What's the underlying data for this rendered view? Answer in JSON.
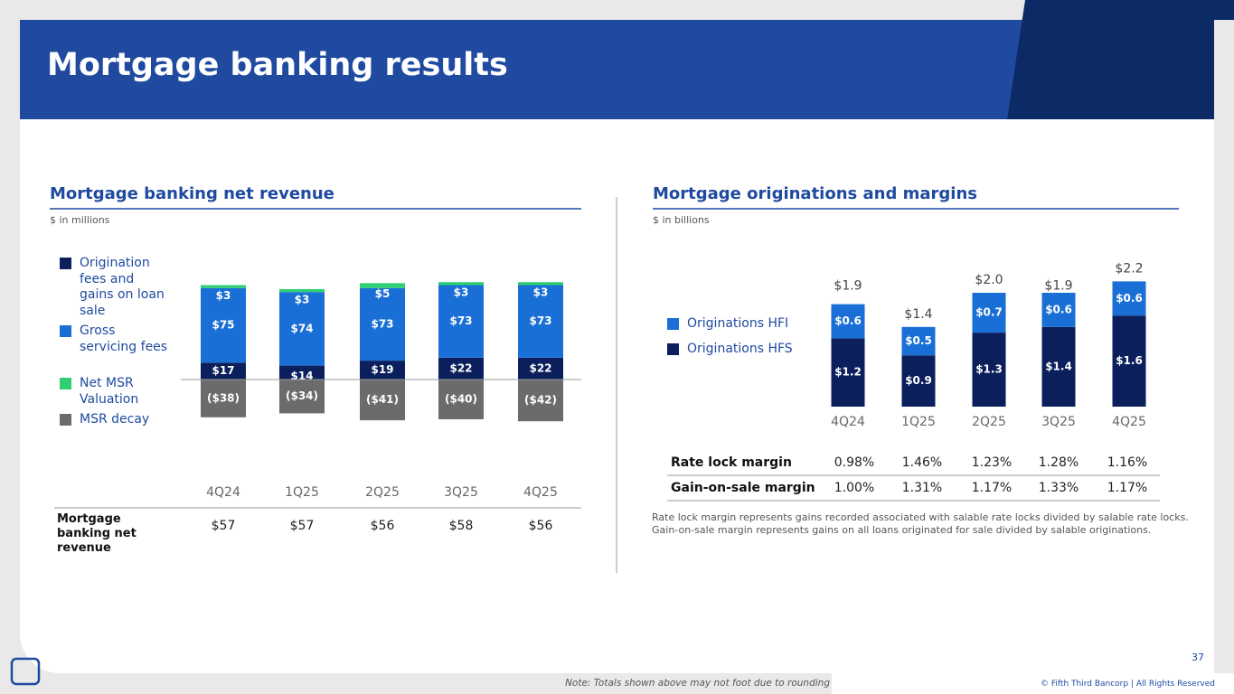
{
  "page": {
    "title": "Mortgage banking results",
    "page_number": "37",
    "note": "Note: Totals shown above may not foot due to rounding",
    "copyright": "© Fifth Third Bancorp | All Rights Reserved"
  },
  "chart_data": [
    {
      "type": "stacked-bar",
      "title": "Mortgage banking net revenue",
      "subtitle": "$ in millions",
      "categories": [
        "4Q24",
        "1Q25",
        "2Q25",
        "3Q25",
        "4Q25"
      ],
      "series": [
        {
          "name": "Origination fees and gains on loan sale",
          "color": "#0b1f5c",
          "values": [
            17,
            14,
            19,
            22,
            22
          ],
          "value_labels": [
            "$17",
            "$14",
            "$19",
            "$22",
            "$22"
          ]
        },
        {
          "name": "Gross servicing fees",
          "color": "#1a6fd6",
          "values": [
            75,
            74,
            73,
            73,
            73
          ],
          "value_labels": [
            "$75",
            "$74",
            "$73",
            "$73",
            "$73"
          ]
        },
        {
          "name": "Net MSR Valuation",
          "color": "#2fcf72",
          "values": [
            3,
            3,
            5,
            3,
            3
          ],
          "value_labels": [
            "$3",
            "$3",
            "$5",
            "$3",
            "$3"
          ]
        },
        {
          "name": "MSR decay",
          "color": "#6b6b6b",
          "values": [
            -38,
            -34,
            -41,
            -40,
            -42
          ],
          "value_labels": [
            "($38)",
            "($34)",
            "($41)",
            "($40)",
            "($42)"
          ]
        }
      ]
    },
    {
      "type": "stacked-bar",
      "title": "Mortgage originations and margins",
      "subtitle": "$ in billions",
      "categories": [
        "4Q24",
        "1Q25",
        "2Q25",
        "3Q25",
        "4Q25"
      ],
      "series": [
        {
          "name": "Originations HFS",
          "color": "#0b1f5c",
          "values": [
            1.2,
            0.9,
            1.3,
            1.4,
            1.6
          ],
          "value_labels": [
            "$1.2",
            "$0.9",
            "$1.3",
            "$1.4",
            "$1.6"
          ]
        },
        {
          "name": "Originations HFI",
          "color": "#1a6fd6",
          "values": [
            0.6,
            0.5,
            0.7,
            0.6,
            0.6
          ],
          "value_labels": [
            "$0.6",
            "$0.5",
            "$0.7",
            "$0.6",
            "$0.6"
          ]
        }
      ],
      "totals": [
        1.9,
        1.4,
        2.0,
        1.9,
        2.2
      ],
      "total_labels": [
        "$1.9",
        "$1.4",
        "$2.0",
        "$1.9",
        "$2.2"
      ]
    }
  ],
  "revenue_table": {
    "label": "Mortgage banking net revenue",
    "cells": [
      "$57",
      "$57",
      "$56",
      "$58",
      "$56"
    ]
  },
  "margin_table": {
    "rows": [
      {
        "label": "Rate lock margin",
        "cells": [
          "0.98%",
          "1.46%",
          "1.23%",
          "1.28%",
          "1.16%"
        ]
      },
      {
        "label": "Gain-on-sale margin",
        "cells": [
          "1.00%",
          "1.31%",
          "1.17%",
          "1.33%",
          "1.17%"
        ]
      }
    ]
  },
  "footnotes": [
    "Rate lock margin represents gains recorded associated with salable rate locks divided by salable rate locks.",
    "Gain-on-sale margin represents gains on all loans originated for sale divided by salable originations."
  ]
}
